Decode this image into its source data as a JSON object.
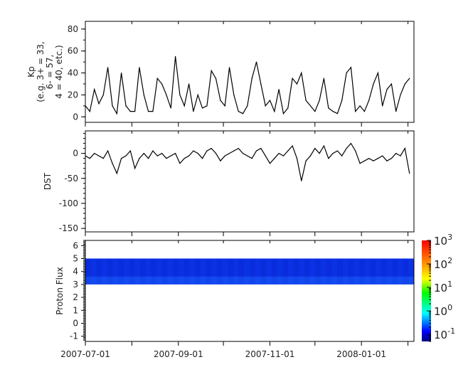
{
  "chart_data": [
    {
      "type": "line",
      "ylabel_lines": [
        "Kp",
        "(e.g. 3+ = 33,",
        "6- = 57,",
        "4 = 40, etc.)"
      ],
      "ylim": [
        -5,
        87
      ],
      "yticks": [
        0,
        20,
        40,
        60,
        80
      ],
      "color": "#000000",
      "x": [
        "2007-07-01",
        "2007-07-04",
        "2007-07-07",
        "2007-07-10",
        "2007-07-13",
        "2007-07-16",
        "2007-07-19",
        "2007-07-22",
        "2007-07-25",
        "2007-07-28",
        "2007-07-31",
        "2007-08-03",
        "2007-08-06",
        "2007-08-09",
        "2007-08-12",
        "2007-08-15",
        "2007-08-18",
        "2007-08-21",
        "2007-08-24",
        "2007-08-27",
        "2007-08-30",
        "2007-09-02",
        "2007-09-05",
        "2007-09-08",
        "2007-09-11",
        "2007-09-14",
        "2007-09-17",
        "2007-09-20",
        "2007-09-23",
        "2007-09-26",
        "2007-09-29",
        "2007-10-02",
        "2007-10-05",
        "2007-10-08",
        "2007-10-11",
        "2007-10-14",
        "2007-10-17",
        "2007-10-20",
        "2007-10-23",
        "2007-10-26",
        "2007-10-29",
        "2007-11-01",
        "2007-11-04",
        "2007-11-07",
        "2007-11-10",
        "2007-11-13",
        "2007-11-16",
        "2007-11-19",
        "2007-11-22",
        "2007-11-25",
        "2007-11-28",
        "2007-12-01",
        "2007-12-04",
        "2007-12-07",
        "2007-12-10",
        "2007-12-13",
        "2007-12-16",
        "2007-12-19",
        "2007-12-22",
        "2007-12-25",
        "2007-12-28",
        "2007-12-31",
        "2008-01-03",
        "2008-01-06",
        "2008-01-09",
        "2008-01-12",
        "2008-01-15",
        "2008-01-18",
        "2008-01-21",
        "2008-01-24",
        "2008-01-27",
        "2008-01-30",
        "2008-02-02"
      ],
      "values": [
        10,
        5,
        25,
        12,
        20,
        45,
        10,
        3,
        40,
        10,
        5,
        5,
        45,
        20,
        5,
        5,
        35,
        30,
        20,
        8,
        55,
        20,
        10,
        30,
        5,
        20,
        8,
        10,
        42,
        35,
        15,
        10,
        45,
        20,
        5,
        3,
        10,
        35,
        50,
        30,
        10,
        15,
        5,
        25,
        3,
        8,
        35,
        30,
        40,
        15,
        10,
        5,
        15,
        35,
        8,
        5,
        3,
        15,
        40,
        45,
        5,
        10,
        5,
        15,
        30,
        40,
        10,
        25,
        30,
        5,
        20,
        30,
        35
      ]
    },
    {
      "type": "line",
      "ylabel": "DST",
      "ylim": [
        -157,
        45
      ],
      "yticks": [
        0,
        -50,
        -100,
        -150
      ],
      "color": "#000000",
      "x_same_as_panel": 0,
      "values": [
        -5,
        -10,
        0,
        -5,
        -10,
        5,
        -20,
        -40,
        -10,
        -5,
        5,
        -30,
        -10,
        0,
        -10,
        5,
        -5,
        0,
        -10,
        -5,
        0,
        -20,
        -10,
        -5,
        5,
        0,
        -10,
        5,
        10,
        0,
        -15,
        -5,
        0,
        5,
        10,
        0,
        -5,
        -10,
        5,
        10,
        -5,
        -20,
        -10,
        0,
        -5,
        5,
        15,
        -10,
        -55,
        -15,
        -5,
        10,
        0,
        15,
        -10,
        0,
        5,
        -5,
        10,
        20,
        5,
        -20,
        -15,
        -10,
        -15,
        -10,
        -5,
        -15,
        -10,
        0,
        -5,
        10,
        -40
      ]
    },
    {
      "type": "heatmap",
      "ylabel": "Proton Flux",
      "ylim": [
        -1.4,
        6.4
      ],
      "yticks": [
        -1,
        0,
        1,
        2,
        3,
        4,
        5,
        6
      ],
      "band_y_range": [
        3,
        5
      ],
      "typical_value_upper": 0.15,
      "typical_value_lower": 0.4,
      "colorbar": {
        "scale": "log",
        "range": [
          0.05,
          1000
        ],
        "tick_labels": [
          {
            "base": "10",
            "exp": "3"
          },
          {
            "base": "10",
            "exp": "2"
          },
          {
            "base": "10",
            "exp": "1"
          },
          {
            "base": "10",
            "exp": "0"
          },
          {
            "base": "10",
            "exp": "-1"
          }
        ],
        "tick_values": [
          1000,
          100,
          10,
          1,
          0.1
        ],
        "colormap": "rainbow"
      }
    }
  ],
  "xaxis": {
    "range": [
      "2007-07-01",
      "2008-02-05"
    ],
    "tick_labels": [
      "2007-07-01",
      "2007-09-01",
      "2007-11-01",
      "2008-01-01"
    ],
    "tick_dates": [
      "2007-07-01",
      "2007-09-01",
      "2007-11-01",
      "2008-01-01"
    ],
    "minor_dates": [
      "2007-08-01",
      "2007-10-01",
      "2007-12-01",
      "2008-02-01"
    ]
  }
}
